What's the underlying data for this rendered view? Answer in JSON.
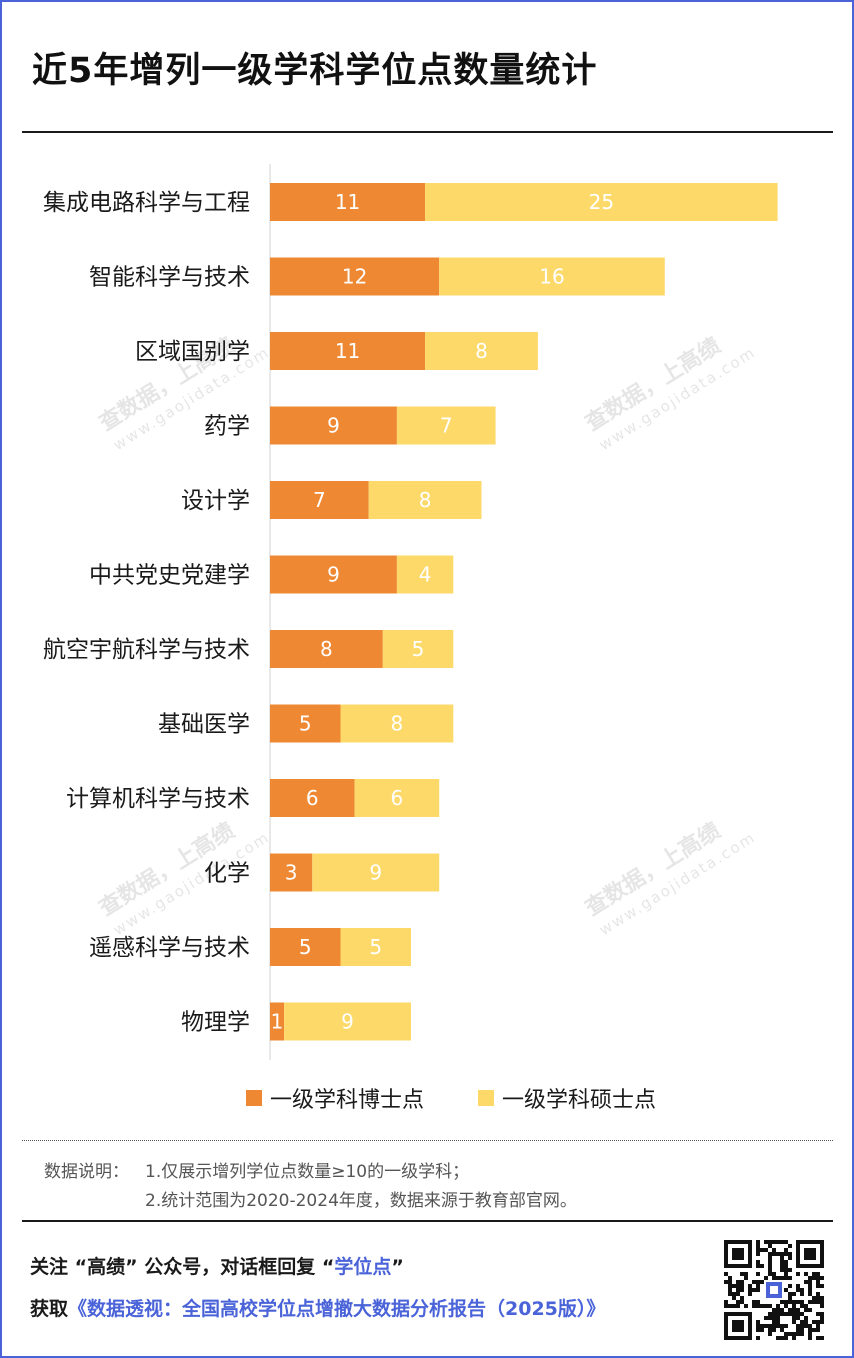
{
  "title": "近5年增列一级学科学位点数量统计",
  "chart_data": {
    "type": "bar",
    "orientation": "horizontal",
    "stacked": true,
    "categories": [
      "集成电路科学与工程",
      "智能科学与技术",
      "区域国别学",
      "药学",
      "设计学",
      "中共党史党建学",
      "航空宇航科学与技术",
      "基础医学",
      "计算机科学与技术",
      "化学",
      "遥感科学与技术",
      "物理学"
    ],
    "series": [
      {
        "name": "一级学科博士点",
        "color": "#ee8833",
        "values": [
          11,
          12,
          11,
          9,
          7,
          9,
          8,
          5,
          6,
          3,
          5,
          1
        ]
      },
      {
        "name": "一级学科硕士点",
        "color": "#fdd96a",
        "values": [
          25,
          16,
          8,
          7,
          8,
          4,
          5,
          8,
          6,
          9,
          5,
          9
        ]
      }
    ],
    "xlim": [
      0,
      36
    ],
    "data_labels": true,
    "legend_position": "bottom"
  },
  "notes": {
    "label": "数据说明：",
    "line1": "1.仅展示增列学位点数量≥10的一级学科；",
    "line2": "2.统计范围为2020-2024年度，数据来源于教育部官网。"
  },
  "footer": {
    "line1_prefix": "关注 “高绩” 公众号，对话框回复 “",
    "line1_highlight": "学位点",
    "line1_suffix": "”",
    "line2_prefix": "获取",
    "line2_highlight": "《数据透视：全国高校学位点增撤大数据分析报告（2025版）》"
  },
  "watermark": {
    "text": "查数据，上高绩",
    "url": "www.gaojidata.com"
  },
  "colors": {
    "accent": "#4a63d8",
    "phd": "#ee8833",
    "master": "#fdd96a"
  }
}
